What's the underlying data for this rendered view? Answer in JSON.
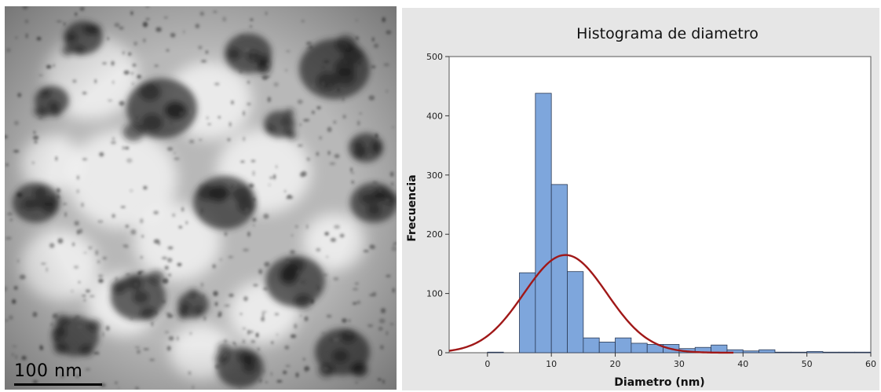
{
  "micrograph": {
    "scale_label": "100 nm"
  },
  "chart_data": {
    "type": "bar",
    "title": "Histograma de diametro",
    "xlabel": "Diametro (nm)",
    "ylabel": "Frecuencia",
    "xlim": [
      -6,
      60
    ],
    "ylim": [
      0,
      500
    ],
    "xticks": [
      0,
      10,
      20,
      30,
      40,
      50,
      60
    ],
    "yticks": [
      0,
      100,
      200,
      300,
      400,
      500
    ],
    "bin_width": 2.5,
    "bins": [
      {
        "start": 0,
        "count": 1
      },
      {
        "start": 5,
        "count": 135
      },
      {
        "start": 7.5,
        "count": 438
      },
      {
        "start": 10,
        "count": 284
      },
      {
        "start": 12.5,
        "count": 137
      },
      {
        "start": 15,
        "count": 25
      },
      {
        "start": 17.5,
        "count": 18
      },
      {
        "start": 20,
        "count": 25
      },
      {
        "start": 22.5,
        "count": 16
      },
      {
        "start": 25,
        "count": 14
      },
      {
        "start": 27.5,
        "count": 14
      },
      {
        "start": 30,
        "count": 7
      },
      {
        "start": 32.5,
        "count": 9
      },
      {
        "start": 35,
        "count": 13
      },
      {
        "start": 37.5,
        "count": 5
      },
      {
        "start": 40,
        "count": 3
      },
      {
        "start": 42.5,
        "count": 5
      },
      {
        "start": 45,
        "count": 1
      },
      {
        "start": 47.5,
        "count": 1
      },
      {
        "start": 50,
        "count": 2
      },
      {
        "start": 52.5,
        "count": 1
      },
      {
        "start": 55,
        "count": 1
      },
      {
        "start": 57.5,
        "count": 1
      }
    ],
    "fit_curve": {
      "type": "normal",
      "mean": 12.2,
      "sd": 6.5,
      "peak": 165
    },
    "bar_color": "#7ea6dc",
    "bar_edge_color": "#2b3a55",
    "curve_color": "#a01818",
    "grid": false,
    "legend": "none"
  }
}
